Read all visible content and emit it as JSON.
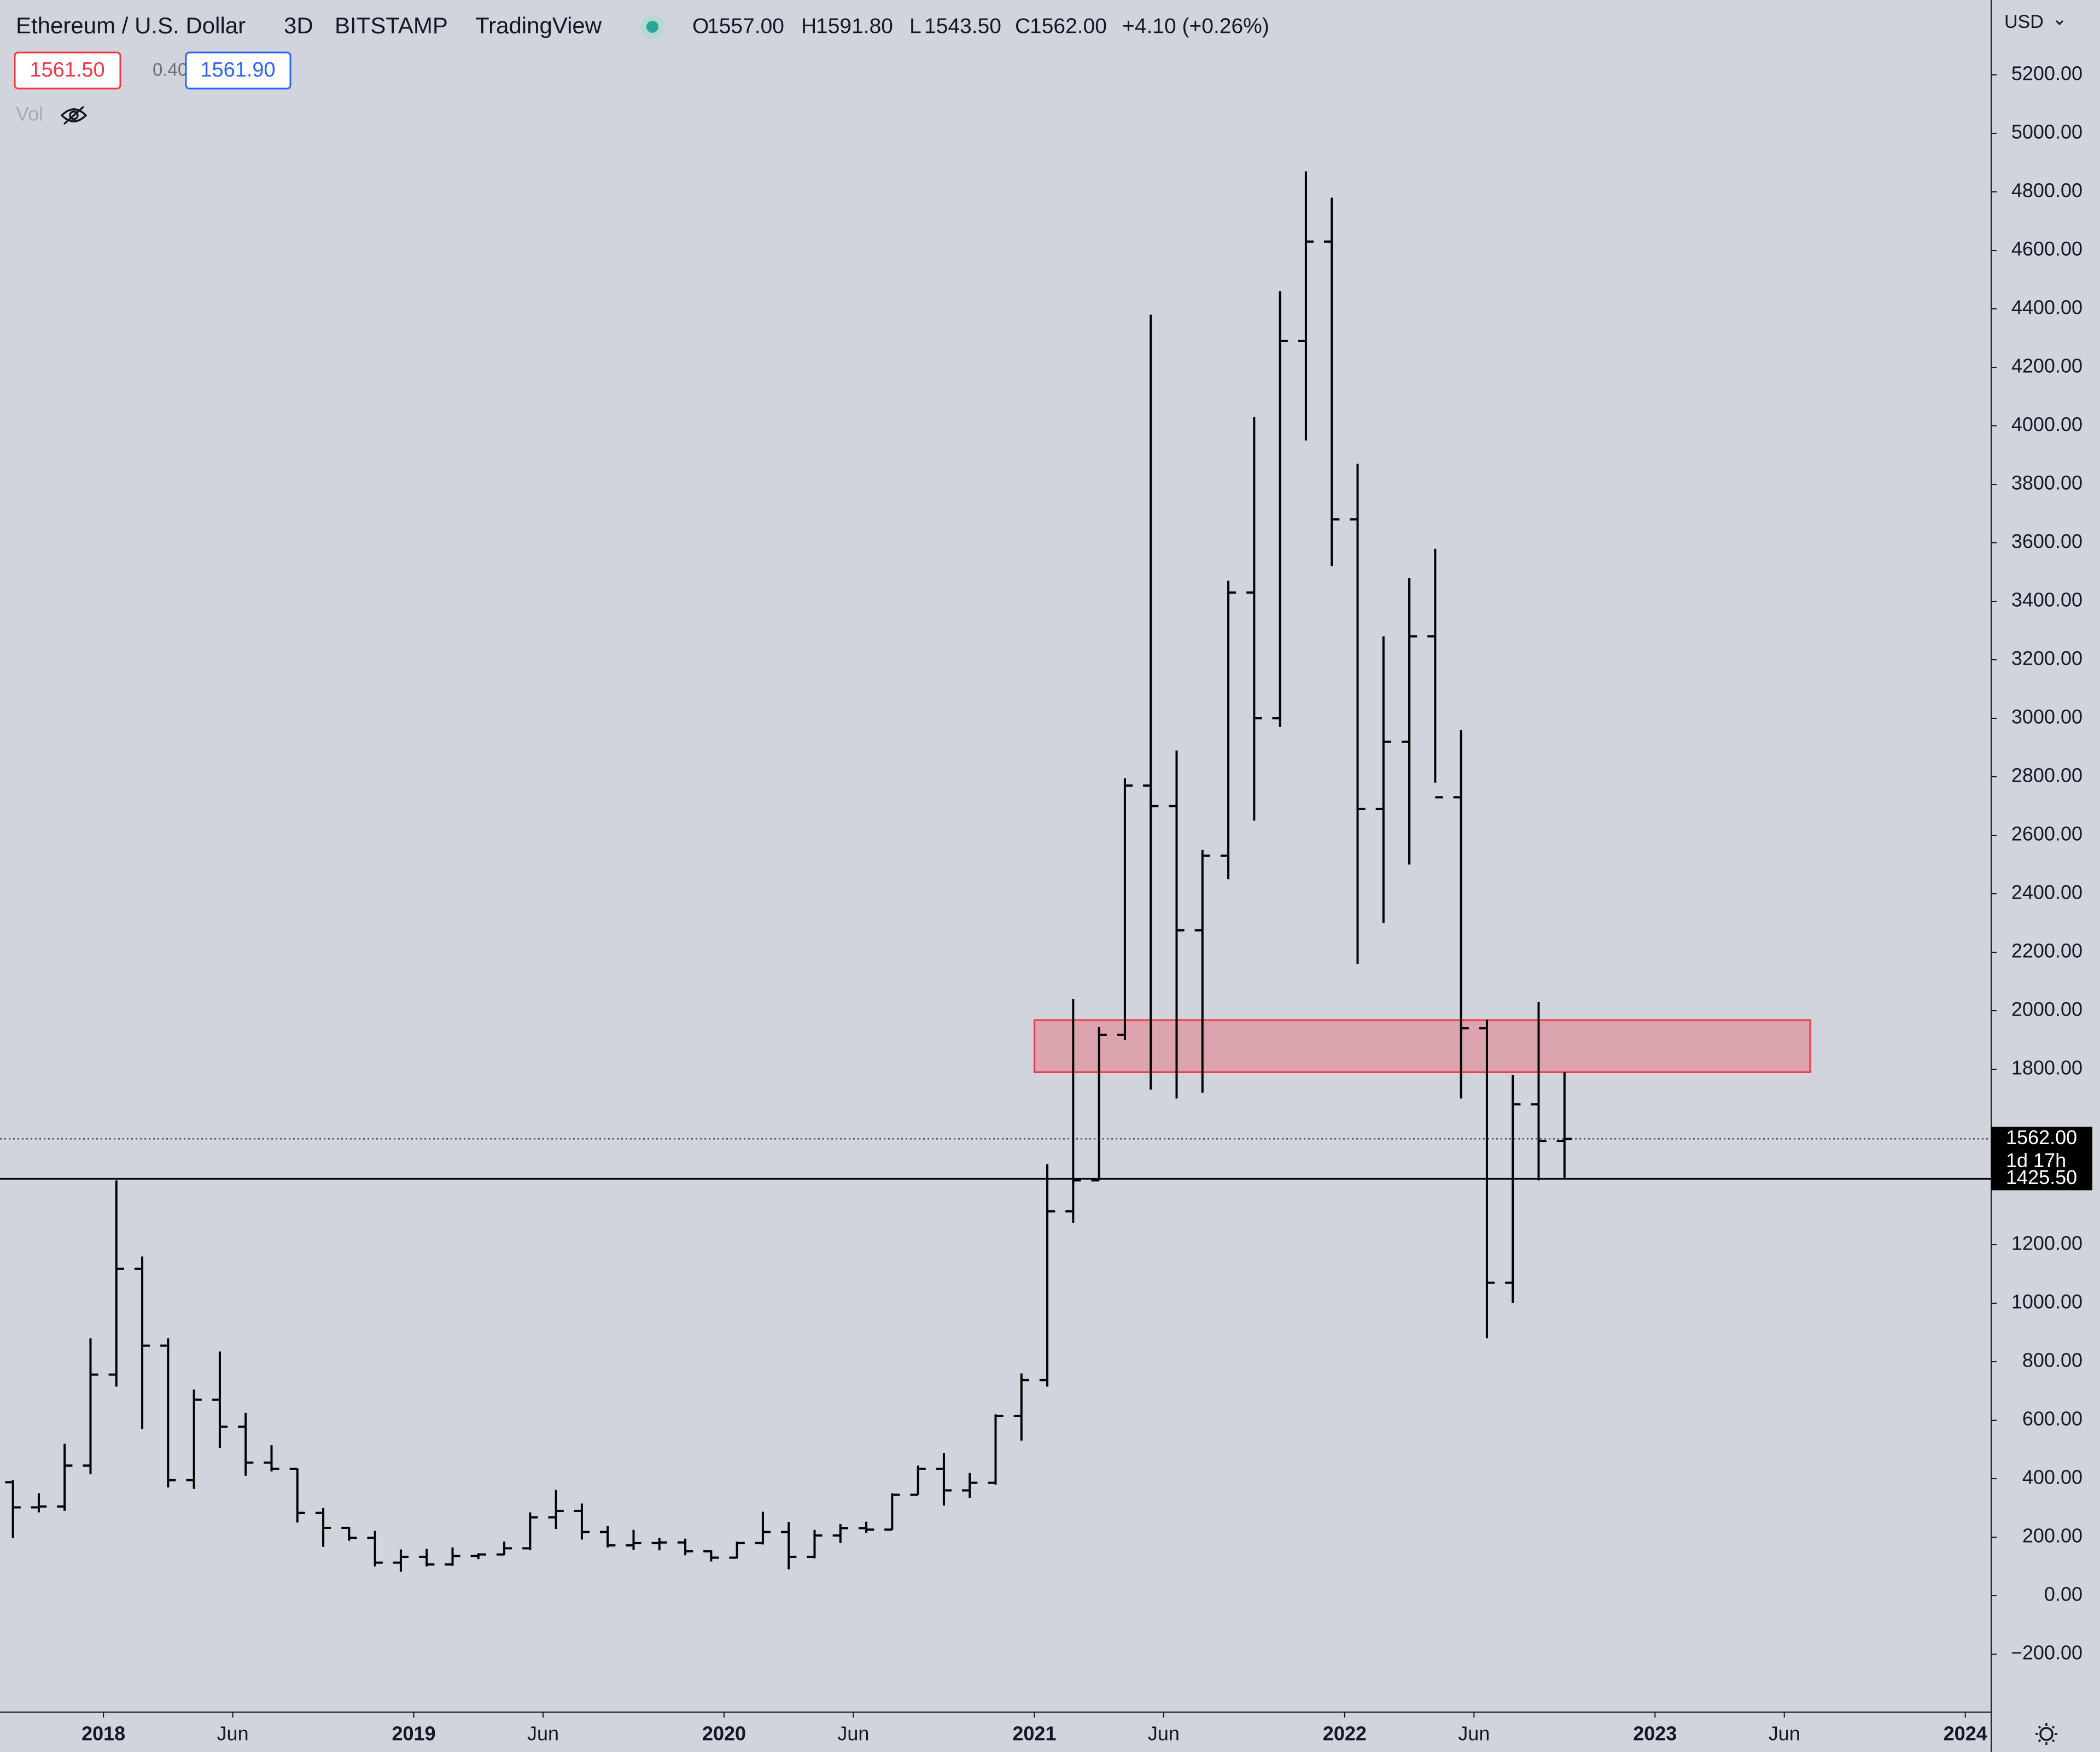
{
  "header": {
    "symbol": "Ethereum / U.S. Dollar",
    "interval": "3D",
    "exchange": "BITSTAMP",
    "source": "TradingView",
    "ohlc": [
      {
        "label": "O",
        "value": "1557.00"
      },
      {
        "label": "H",
        "value": "1591.80"
      },
      {
        "label": "L",
        "value": "1543.50"
      },
      {
        "label": "C",
        "value": "1562.00"
      }
    ],
    "change": "+4.10 (+0.26%)",
    "bid": "1561.50",
    "spread": "0.40",
    "ask": "1561.90",
    "volume_label": "Vol",
    "currency": "USD"
  },
  "chart_data": {
    "type": "ohlc",
    "color": "#000000",
    "x": [
      "2017-09",
      "2017-10",
      "2017-11",
      "2017-12",
      "2018-01",
      "2018-02",
      "2018-03",
      "2018-04",
      "2018-05",
      "2018-06",
      "2018-07",
      "2018-08",
      "2018-09",
      "2018-10",
      "2018-11",
      "2018-12",
      "2019-01",
      "2019-02",
      "2019-03",
      "2019-04",
      "2019-05",
      "2019-06",
      "2019-07",
      "2019-08",
      "2019-09",
      "2019-10",
      "2019-11",
      "2019-12",
      "2020-01",
      "2020-02",
      "2020-03",
      "2020-04",
      "2020-05",
      "2020-06",
      "2020-07",
      "2020-08",
      "2020-09",
      "2020-10",
      "2020-11",
      "2020-12",
      "2021-01",
      "2021-02",
      "2021-03",
      "2021-04",
      "2021-05",
      "2021-06",
      "2021-07",
      "2021-08",
      "2021-09",
      "2021-10",
      "2021-11",
      "2021-12",
      "2022-01",
      "2022-02",
      "2022-03",
      "2022-04",
      "2022-05",
      "2022-06",
      "2022-07",
      "2022-08",
      "2022-09"
    ],
    "open": [
      388,
      302,
      305,
      445,
      756,
      1118,
      855,
      395,
      670,
      578,
      455,
      434,
      283,
      232,
      198,
      113,
      133,
      107,
      136,
      141,
      162,
      268,
      290,
      218,
      172,
      180,
      182,
      152,
      130,
      180,
      218,
      133,
      206,
      231,
      226,
      345,
      434,
      360,
      386,
      615,
      737,
      1314,
      1420,
      1918,
      2770,
      2700,
      2275,
      2530,
      3430,
      3000,
      4290,
      4630,
      3680,
      2690,
      2920,
      3280,
      2730,
      1940,
      1070,
      1680,
      1555
    ],
    "high": [
      395,
      350,
      520,
      880,
      1420,
      1160,
      880,
      705,
      835,
      625,
      515,
      435,
      300,
      235,
      222,
      158,
      160,
      165,
      145,
      185,
      285,
      362,
      315,
      238,
      225,
      198,
      195,
      155,
      185,
      287,
      252,
      225,
      245,
      253,
      350,
      445,
      488,
      420,
      620,
      760,
      1475,
      2040,
      1945,
      2795,
      4380,
      2890,
      2550,
      3470,
      4030,
      4460,
      4870,
      4780,
      3870,
      3280,
      3480,
      3580,
      2960,
      1970,
      1780,
      2030,
      1790
    ],
    "low": [
      197,
      285,
      290,
      415,
      715,
      570,
      370,
      365,
      505,
      410,
      425,
      250,
      167,
      188,
      100,
      82,
      100,
      102,
      125,
      138,
      157,
      228,
      192,
      165,
      157,
      155,
      138,
      117,
      127,
      175,
      90,
      128,
      180,
      215,
      225,
      345,
      308,
      335,
      380,
      530,
      715,
      1275,
      1420,
      1900,
      1730,
      1700,
      1720,
      2450,
      2650,
      2970,
      3950,
      3520,
      2160,
      2300,
      2500,
      2780,
      1700,
      880,
      1000,
      1420,
      1425.5
    ],
    "close": [
      302,
      305,
      445,
      756,
      1118,
      855,
      395,
      670,
      578,
      455,
      434,
      283,
      232,
      198,
      113,
      133,
      107,
      136,
      141,
      162,
      268,
      290,
      218,
      172,
      180,
      182,
      152,
      130,
      180,
      218,
      133,
      206,
      231,
      226,
      345,
      434,
      360,
      386,
      615,
      737,
      1314,
      1420,
      1918,
      2770,
      2700,
      2275,
      2530,
      3430,
      3000,
      4290,
      4630,
      3680,
      2690,
      2920,
      3280,
      2730,
      1940,
      1070,
      1680,
      1555,
      1562
    ],
    "xlim": [
      "2017-09",
      "2024-02"
    ],
    "xticks": [
      {
        "value": "2018-01",
        "label": "2018"
      },
      {
        "value": "2018-06",
        "label": "Jun"
      },
      {
        "value": "2019-01",
        "label": "2019"
      },
      {
        "value": "2019-06",
        "label": "Jun"
      },
      {
        "value": "2020-01",
        "label": "2020"
      },
      {
        "value": "2020-06",
        "label": "Jun"
      },
      {
        "value": "2021-01",
        "label": "2021"
      },
      {
        "value": "2021-06",
        "label": "Jun"
      },
      {
        "value": "2022-01",
        "label": "2022"
      },
      {
        "value": "2022-06",
        "label": "Jun"
      },
      {
        "value": "2023-01",
        "label": "2023"
      },
      {
        "value": "2023-06",
        "label": "Jun"
      },
      {
        "value": "2024-01",
        "label": "2024"
      }
    ],
    "ylim": [
      -398,
      5456
    ],
    "yticks": [
      {
        "value": -200,
        "label": "−200.00"
      },
      {
        "value": 0,
        "label": "0.00"
      },
      {
        "value": 200,
        "label": "200.00"
      },
      {
        "value": 400,
        "label": "400.00"
      },
      {
        "value": 600,
        "label": "600.00"
      },
      {
        "value": 800,
        "label": "800.00"
      },
      {
        "value": 1000,
        "label": "1000.00"
      },
      {
        "value": 1200,
        "label": "1200.00"
      },
      {
        "value": 1800,
        "label": "1800.00"
      },
      {
        "value": 2000,
        "label": "2000.00"
      },
      {
        "value": 2200,
        "label": "2200.00"
      },
      {
        "value": 2400,
        "label": "2400.00"
      },
      {
        "value": 2600,
        "label": "2600.00"
      },
      {
        "value": 2800,
        "label": "2800.00"
      },
      {
        "value": 3000,
        "label": "3000.00"
      },
      {
        "value": 3200,
        "label": "3200.00"
      },
      {
        "value": 3400,
        "label": "3400.00"
      },
      {
        "value": 3600,
        "label": "3600.00"
      },
      {
        "value": 3800,
        "label": "3800.00"
      },
      {
        "value": 4000,
        "label": "4000.00"
      },
      {
        "value": 4200,
        "label": "4200.00"
      },
      {
        "value": 4400,
        "label": "4400.00"
      },
      {
        "value": 4600,
        "label": "4600.00"
      },
      {
        "value": 4800,
        "label": "4800.00"
      },
      {
        "value": 5000,
        "label": "5000.00"
      },
      {
        "value": 5200,
        "label": "5200.00"
      }
    ],
    "zone": {
      "x": [
        "2021-01",
        "2023-07"
      ],
      "y": [
        1790,
        1968
      ],
      "color": "#f23645"
    },
    "current_price": {
      "value": 1562,
      "label": "1562.00",
      "countdown": "1d 17h"
    },
    "horizontal_line": {
      "value": 1425.5,
      "label": "1425.50"
    }
  }
}
